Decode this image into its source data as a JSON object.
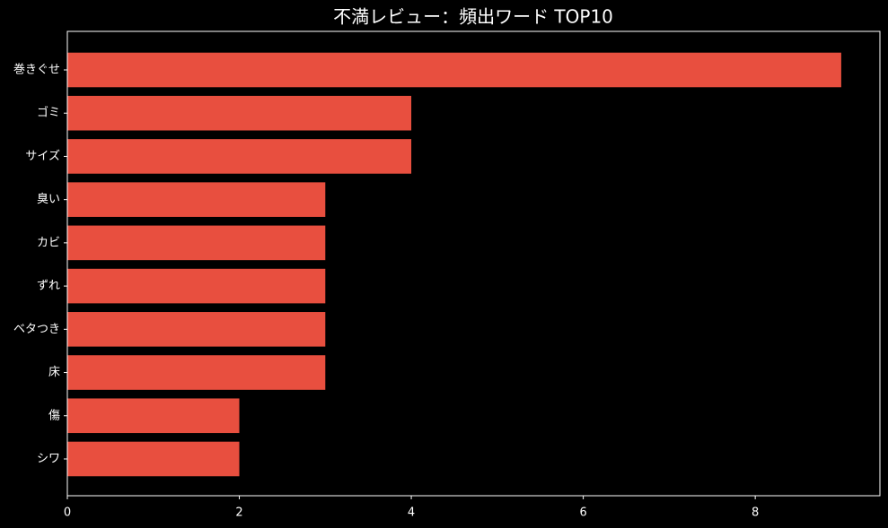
{
  "chart_data": {
    "type": "bar",
    "orientation": "horizontal",
    "title": "不満レビュー：頻出ワード TOP10",
    "categories": [
      "巻きぐせ",
      "ゴミ",
      "サイズ",
      "臭い",
      "カビ",
      "ずれ",
      "ベタつき",
      "床",
      "傷",
      "シワ"
    ],
    "values": [
      9,
      4,
      4,
      3,
      3,
      3,
      3,
      3,
      2,
      2
    ],
    "color": "#e84f3f",
    "xlim": [
      0,
      9.45
    ],
    "xticks": [
      0,
      2,
      4,
      6,
      8
    ],
    "grid": false
  }
}
